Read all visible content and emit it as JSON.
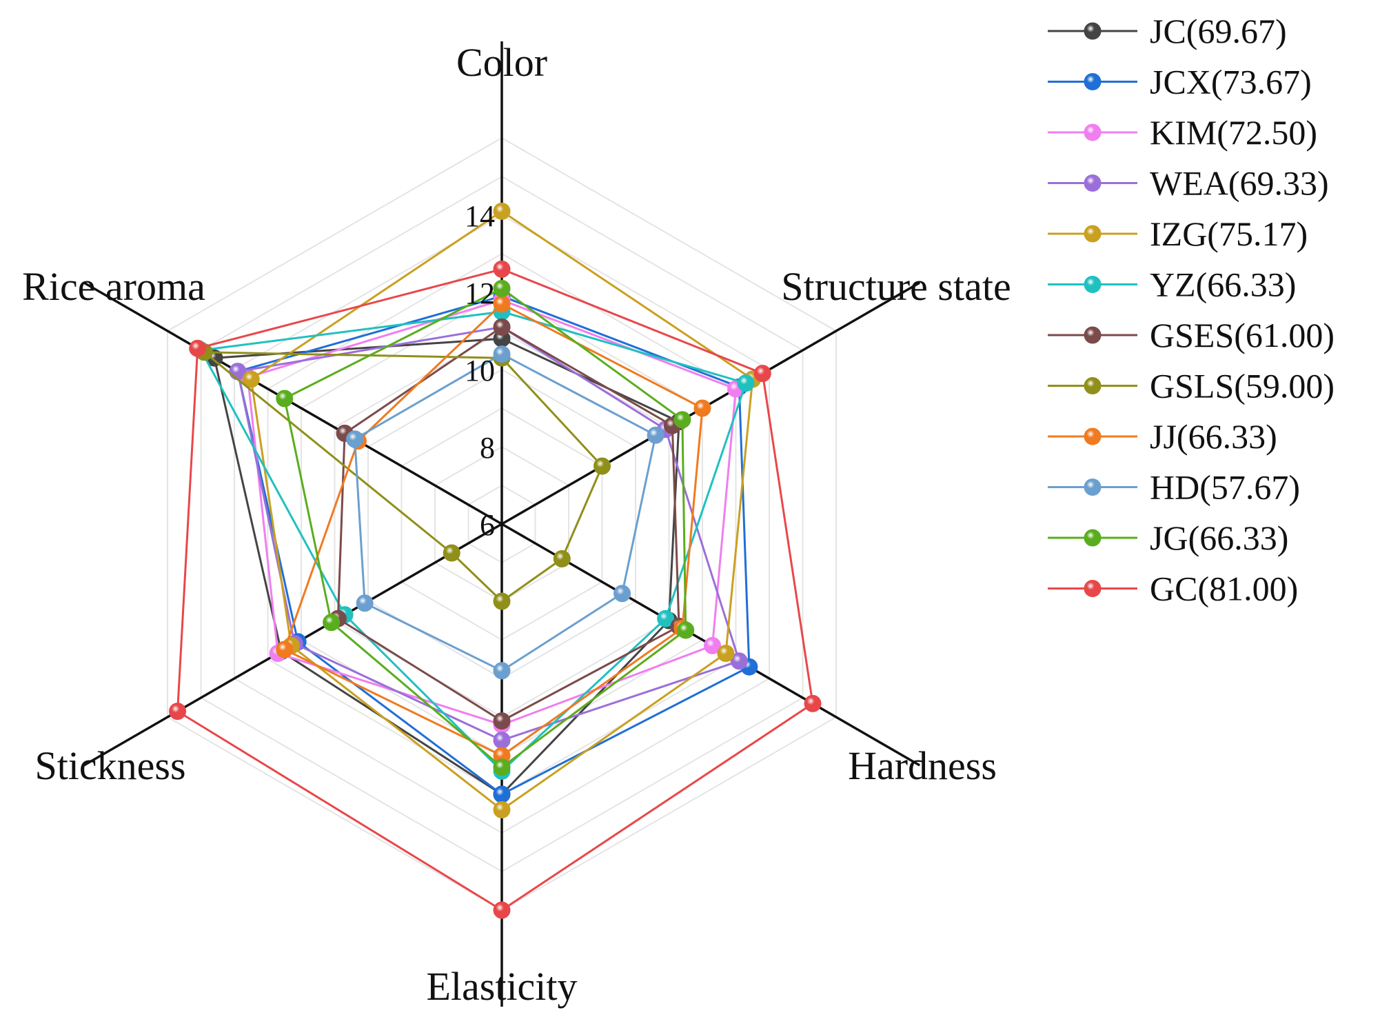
{
  "chart_data": {
    "type": "radar",
    "axes": [
      "Color",
      "Structure state",
      "Hardness",
      "Elasticity",
      "Stickness",
      "Rice aroma"
    ],
    "rlim": [
      6,
      16
    ],
    "ticks": [
      "6",
      "8",
      "10",
      "12",
      "14"
    ],
    "tick_values": [
      6,
      8,
      10,
      12,
      14
    ],
    "gridlines": true,
    "legend_position": "right",
    "series": [
      {
        "name": "JC(69.67)",
        "color": "#444444",
        "values": [
          10.8,
          11.3,
          11.0,
          13.0,
          12.6,
          14.6
        ]
      },
      {
        "name": "JCX(73.67)",
        "color": "#1f6fd6",
        "values": [
          11.9,
          13.1,
          13.4,
          13.0,
          12.1,
          13.9
        ]
      },
      {
        "name": "KIM(72.50)",
        "color": "#f07ef0",
        "values": [
          11.8,
          13.0,
          12.3,
          11.2,
          12.7,
          13.6
        ]
      },
      {
        "name": "WEA(69.33)",
        "color": "#9b6fd9",
        "values": [
          11.1,
          10.9,
          13.1,
          11.6,
          12.2,
          13.9
        ]
      },
      {
        "name": "IZG(75.17)",
        "color": "#c9a020",
        "values": [
          14.1,
          13.5,
          12.7,
          13.4,
          12.3,
          13.5
        ]
      },
      {
        "name": "YZ(66.33)",
        "color": "#20c0c0",
        "values": [
          11.5,
          13.3,
          10.9,
          12.4,
          10.7,
          15.0
        ]
      },
      {
        "name": "GSES(61.00)",
        "color": "#7b4a4a",
        "values": [
          11.1,
          11.1,
          11.3,
          11.1,
          10.9,
          10.7
        ]
      },
      {
        "name": "GSLS(59.00)",
        "color": "#8f8f1a",
        "values": [
          10.3,
          9.0,
          7.8,
          8.0,
          7.5,
          14.9
        ]
      },
      {
        "name": "JJ(66.33)",
        "color": "#f07a20",
        "values": [
          11.7,
          12.0,
          11.4,
          12.0,
          12.5,
          10.3
        ]
      },
      {
        "name": "HD(57.67)",
        "color": "#6b9fcf",
        "values": [
          10.4,
          10.6,
          9.6,
          9.8,
          10.1,
          10.4
        ]
      },
      {
        "name": "JG(66.33)",
        "color": "#5aad1e",
        "values": [
          12.1,
          11.4,
          11.5,
          12.3,
          11.1,
          12.5
        ]
      },
      {
        "name": "GC(81.00)",
        "color": "#e8474a",
        "values": [
          12.6,
          13.8,
          15.3,
          16.0,
          15.7,
          15.1
        ]
      }
    ]
  }
}
